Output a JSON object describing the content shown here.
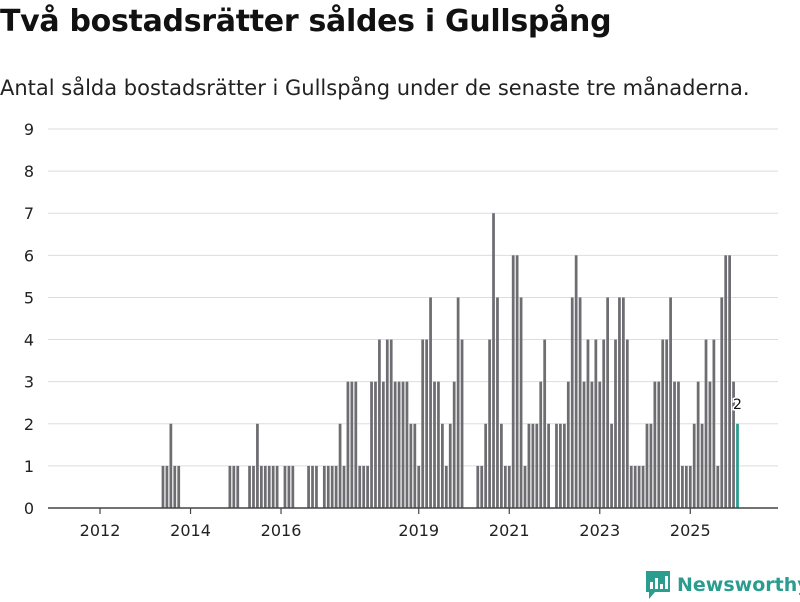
{
  "title": "Två bostadsrätter såldes i Gullspång",
  "subtitle": "Antal sålda bostadsrätter i Gullspång under de senaste tre månaderna.",
  "brand": {
    "name": "Newsworthy"
  },
  "colors": {
    "bar": "#6d6d72",
    "highlight": "#2a9d8f",
    "grid": "#dddddd",
    "axis": "#444444",
    "text": "#222222"
  },
  "chart_data": {
    "type": "bar",
    "title": "Två bostadsrätter såldes i Gullspång",
    "subtitle": "Antal sålda bostadsrätter i Gullspång under de senaste tre månaderna.",
    "xlabel": "",
    "ylabel": "",
    "ylim": [
      0,
      9
    ],
    "yticks": [
      0,
      1,
      2,
      3,
      4,
      5,
      6,
      7,
      8,
      9
    ],
    "grid": true,
    "x_start": "2011-01",
    "xticks": [
      {
        "label": "2012",
        "index": 10
      },
      {
        "label": "2014",
        "index": 33
      },
      {
        "label": "2016",
        "index": 56
      },
      {
        "label": "2019",
        "index": 91
      },
      {
        "label": "2021",
        "index": 114
      },
      {
        "label": "2023",
        "index": 137
      },
      {
        "label": "2025",
        "index": 160
      }
    ],
    "values": [
      0,
      0,
      0,
      0,
      0,
      0,
      0,
      0,
      0,
      0,
      0,
      0,
      0,
      0,
      0,
      0,
      0,
      0,
      0,
      0,
      0,
      0,
      0,
      0,
      0,
      0,
      1,
      1,
      2,
      1,
      1,
      0,
      0,
      0,
      0,
      0,
      0,
      0,
      0,
      0,
      0,
      0,
      0,
      1,
      1,
      1,
      0,
      0,
      1,
      1,
      2,
      1,
      1,
      1,
      1,
      1,
      0,
      1,
      1,
      1,
      0,
      0,
      0,
      1,
      1,
      1,
      0,
      1,
      1,
      1,
      1,
      2,
      1,
      3,
      3,
      3,
      1,
      1,
      1,
      3,
      3,
      4,
      3,
      4,
      4,
      3,
      3,
      3,
      3,
      2,
      2,
      1,
      4,
      4,
      5,
      3,
      3,
      2,
      1,
      2,
      3,
      5,
      4,
      0,
      0,
      0,
      1,
      1,
      2,
      4,
      7,
      5,
      2,
      1,
      1,
      6,
      6,
      5,
      1,
      2,
      2,
      2,
      3,
      4,
      2,
      0,
      2,
      2,
      2,
      3,
      5,
      6,
      5,
      3,
      4,
      3,
      4,
      3,
      4,
      5,
      2,
      4,
      5,
      5,
      4,
      1,
      1,
      1,
      1,
      2,
      2,
      3,
      3,
      4,
      4,
      5,
      3,
      3,
      1,
      1,
      1,
      2,
      3,
      2,
      4,
      3,
      4,
      1,
      5,
      6,
      6,
      3,
      2
    ],
    "highlight_last": true,
    "annotations": [
      {
        "text": "2",
        "at": "last"
      }
    ]
  }
}
